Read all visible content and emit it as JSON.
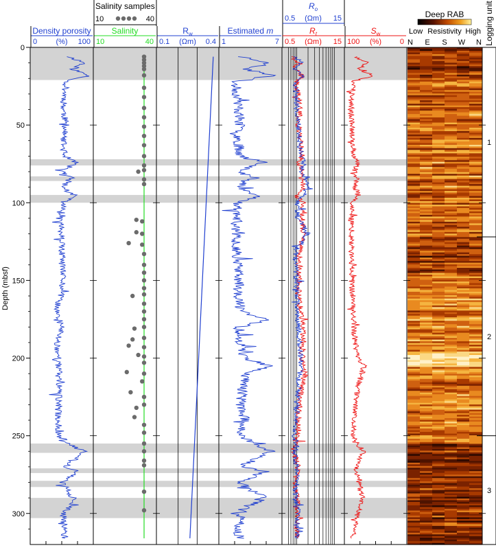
{
  "chart_data": {
    "type": "line",
    "y_axis": {
      "label": "Depth (mbsf)",
      "range": [
        0,
        320
      ],
      "reversed": true,
      "ticks": [
        0,
        50,
        100,
        150,
        200,
        250,
        300
      ]
    },
    "shaded_intervals": [
      [
        0,
        21
      ],
      [
        72,
        76
      ],
      [
        83,
        86
      ],
      [
        95,
        100
      ],
      [
        255,
        261
      ],
      [
        271,
        274
      ],
      [
        279,
        283
      ],
      [
        290,
        303
      ]
    ],
    "tracks": [
      {
        "id": "density-porosity",
        "header": "Density porosity",
        "unit": "(%)",
        "min_label": "0",
        "max_label": "100",
        "range": [
          0,
          100
        ],
        "color": "#1f3fd0",
        "series": [
          {
            "depth": [
              6,
              10,
              14,
              18,
              22,
              30,
              40,
              50,
              60,
              70,
              74,
              80,
              84,
              90,
              96,
              100,
              110,
              120,
              130,
              140,
              150,
              160,
              170,
              180,
              190,
              200,
              210,
              220,
              230,
              240,
              250,
              256,
              260,
              270,
              273,
              280,
              290,
              296,
              300,
              310,
              316
            ],
            "value": [
              62,
              90,
              70,
              95,
              58,
              55,
              53,
              57,
              52,
              55,
              75,
              50,
              66,
              52,
              72,
              52,
              50,
              48,
              50,
              50,
              52,
              48,
              40,
              50,
              42,
              44,
              45,
              46,
              44,
              44,
              45,
              65,
              88,
              58,
              78,
              50,
              70,
              62,
              52,
              55,
              55
            ]
          }
        ]
      },
      {
        "id": "salinity",
        "header": "Salinity",
        "header2": "Salinity samples",
        "unit": "",
        "min_label": "10",
        "max_label": "40",
        "header2_min": "10",
        "header2_max": "40",
        "range": [
          10,
          40
        ],
        "color": "#22dd22",
        "series": [
          {
            "depth": [
              6,
              316
            ],
            "value": [
              35,
              35
            ]
          }
        ],
        "samples": {
          "color": "#6b6b6b",
          "points": [
            [
              6,
              35
            ],
            [
              8,
              35
            ],
            [
              10,
              35
            ],
            [
              12,
              35
            ],
            [
              14,
              35
            ],
            [
              18,
              35
            ],
            [
              26,
              35
            ],
            [
              32,
              35
            ],
            [
              39,
              35
            ],
            [
              45,
              35
            ],
            [
              51,
              35
            ],
            [
              57,
              35
            ],
            [
              63,
              35
            ],
            [
              70,
              35
            ],
            [
              76,
              35
            ],
            [
              79,
              35
            ],
            [
              80,
              32
            ],
            [
              85,
              35
            ],
            [
              88,
              35
            ],
            [
              111,
              31
            ],
            [
              112,
              34
            ],
            [
              119,
              31
            ],
            [
              120,
              34
            ],
            [
              126,
              27
            ],
            [
              127,
              34
            ],
            [
              133,
              35
            ],
            [
              140,
              35
            ],
            [
              145,
              35
            ],
            [
              150,
              35
            ],
            [
              155,
              35
            ],
            [
              159,
              35
            ],
            [
              160,
              29
            ],
            [
              165,
              35
            ],
            [
              170,
              35
            ],
            [
              175,
              35
            ],
            [
              180,
              35
            ],
            [
              181,
              30
            ],
            [
              187,
              35
            ],
            [
              188,
              29
            ],
            [
              192,
              27
            ],
            [
              193,
              35
            ],
            [
              198,
              32
            ],
            [
              199,
              35
            ],
            [
              203,
              35
            ],
            [
              209,
              26
            ],
            [
              210,
              35
            ],
            [
              215,
              34
            ],
            [
              222,
              28
            ],
            [
              225,
              35
            ],
            [
              230,
              35
            ],
            [
              232,
              31
            ],
            [
              238,
              30
            ],
            [
              243,
              35
            ],
            [
              248,
              35
            ],
            [
              255,
              35
            ],
            [
              260,
              35
            ],
            [
              266,
              35
            ],
            [
              269,
              35
            ],
            [
              286,
              35
            ],
            [
              298,
              35
            ]
          ]
        }
      },
      {
        "id": "rw",
        "header": "R",
        "header_sub": "w",
        "unit": "(Ωm)",
        "min_label": "0.1",
        "max_label": "0.4",
        "range": [
          0.1,
          0.4
        ],
        "color": "#1f3fd0",
        "series": [
          {
            "depth": [
              6,
              316
            ],
            "value": [
              0.385,
              0.262
            ]
          }
        ]
      },
      {
        "id": "estimated-m",
        "header": "Estimated",
        "header_italic": "m",
        "unit": "",
        "min_label": "1",
        "max_label": "7",
        "range": [
          1,
          7
        ],
        "color": "#1f3fd0",
        "series": [
          {
            "depth": [
              6,
              10,
              14,
              18,
              22,
              30,
              40,
              50,
              60,
              70,
              74,
              80,
              84,
              90,
              96,
              100,
              110,
              120,
              130,
              140,
              150,
              160,
              170,
              175,
              180,
              190,
              200,
              205,
              210,
              220,
              230,
              240,
              250,
              256,
              260,
              270,
              273,
              280,
              290,
              296,
              300,
              310,
              316
            ],
            "value": [
              3.0,
              6.2,
              3.4,
              6.4,
              2.4,
              2.6,
              2.8,
              2.9,
              2.7,
              3.0,
              5.6,
              2.6,
              4.5,
              2.8,
              4.8,
              2.7,
              2.6,
              2.5,
              2.6,
              2.7,
              2.8,
              2.7,
              3.0,
              5.8,
              2.8,
              3.0,
              3.4,
              6.0,
              3.6,
              3.2,
              3.0,
              3.4,
              3.0,
              4.5,
              6.2,
              3.0,
              5.5,
              2.8,
              5.6,
              3.4,
              3.0,
              2.8,
              2.8
            ]
          }
        ]
      },
      {
        "id": "resistivity",
        "header": "R",
        "header_sub": "t",
        "unit": "(Ωm)",
        "header2": "R",
        "header2_sub": "o",
        "header2_unit": "(Ωm)",
        "min_label": "0.5",
        "max_label": "15",
        "header2_min": "0.5",
        "header2_max": "15",
        "range": [
          0.5,
          15
        ],
        "scale": "log",
        "series": [
          {
            "color": "#ee1111",
            "depth": [
              6,
              10,
              14,
              18,
              22,
              30,
              40,
              50,
              60,
              70,
              74,
              80,
              84,
              90,
              96,
              100,
              110,
              120,
              130,
              140,
              150,
              160,
              170,
              180,
              190,
              200,
              210,
              220,
              230,
              240,
              250,
              256,
              260,
              270,
              280,
              290,
              300,
              310,
              316
            ],
            "value": [
              0.8,
              1.0,
              0.9,
              1.4,
              1.0,
              1.1,
              1.2,
              1.1,
              1.3,
              1.4,
              1.1,
              1.5,
              1.2,
              1.6,
              1.0,
              1.5,
              1.4,
              1.5,
              1.2,
              1.1,
              1.2,
              1.1,
              1.3,
              1.4,
              1.5,
              1.4,
              1.6,
              1.3,
              1.2,
              1.1,
              1.0,
              0.9,
              0.8,
              1.1,
              0.9,
              1.0,
              1.1,
              1.0,
              1.0
            ]
          },
          {
            "color": "#1f3fd0",
            "depth": [
              6,
              10,
              14,
              18,
              22,
              30,
              40,
              50,
              60,
              70,
              74,
              80,
              84,
              90,
              96,
              100,
              110,
              120,
              130,
              140,
              150,
              160,
              170,
              180,
              190,
              200,
              210,
              220,
              230,
              240,
              250,
              256,
              260,
              270,
              280,
              290,
              300,
              310,
              316
            ],
            "value": [
              0.9,
              1.3,
              0.8,
              1.5,
              0.9,
              1.0,
              1.0,
              1.1,
              1.2,
              1.3,
              1.6,
              1.2,
              1.8,
              1.9,
              1.4,
              1.0,
              1.1,
              1.9,
              1.0,
              0.9,
              1.0,
              1.0,
              1.1,
              1.1,
              1.2,
              1.3,
              1.2,
              1.1,
              1.0,
              1.0,
              0.9,
              1.0,
              0.9,
              1.0,
              1.0,
              0.9,
              1.1,
              1.0,
              1.0
            ]
          }
        ]
      },
      {
        "id": "sw",
        "header": "S",
        "header_sub": "w",
        "unit": "(%)",
        "min_label": "100",
        "max_label": "0",
        "range": [
          100,
          0
        ],
        "color": "#ee1111",
        "series": [
          {
            "depth": [
              6,
              10,
              14,
              18,
              22,
              30,
              40,
              50,
              60,
              70,
              74,
              80,
              84,
              90,
              96,
              100,
              110,
              120,
              130,
              140,
              150,
              160,
              170,
              180,
              190,
              200,
              205,
              210,
              220,
              230,
              240,
              250,
              256,
              260,
              270,
              280,
              290,
              300,
              310,
              316
            ],
            "value": [
              85,
              65,
              80,
              55,
              90,
              92,
              93,
              92,
              90,
              88,
              80,
              88,
              82,
              86,
              80,
              92,
              93,
              92,
              93,
              93,
              92,
              90,
              90,
              88,
              86,
              80,
              70,
              75,
              82,
              85,
              88,
              90,
              80,
              70,
              85,
              80,
              72,
              82,
              88,
              90
            ]
          }
        ]
      },
      {
        "id": "deep-rab",
        "header": "Deep RAB",
        "colorbar_low": "Low",
        "colorbar_mid": "Resistivity",
        "colorbar_high": "High",
        "azimuth_labels": [
          "N",
          "E",
          "S",
          "W",
          "N"
        ],
        "type": "image"
      },
      {
        "id": "logging-unit",
        "header": "Logging unit",
        "units": [
          {
            "label": "1",
            "top": 0,
            "bottom": 122
          },
          {
            "label": "2",
            "top": 122,
            "bottom": 250
          },
          {
            "label": "3",
            "top": 250,
            "bottom": 320
          }
        ]
      }
    ]
  }
}
